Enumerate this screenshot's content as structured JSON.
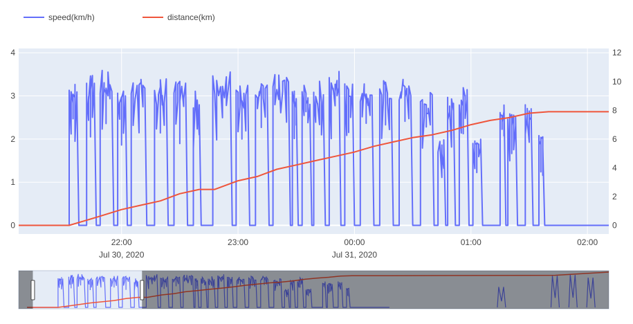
{
  "chart_data": {
    "type": "line",
    "title": "",
    "xlabel": "",
    "ylabel": "",
    "y2label": "",
    "legend": {
      "placement": "top-left",
      "orientation": "horizontal"
    },
    "grid": true,
    "x_ticks": [
      {
        "label": "22:00",
        "sublabel": "Jul 30, 2020",
        "t": "2020-07-30T22:00"
      },
      {
        "label": "23:00",
        "sublabel": "",
        "t": "2020-07-30T23:00"
      },
      {
        "label": "00:00",
        "sublabel": "Jul 31, 2020",
        "t": "2020-07-31T00:00"
      },
      {
        "label": "01:00",
        "sublabel": "",
        "t": "2020-07-31T01:00"
      },
      {
        "label": "02:00",
        "sublabel": "",
        "t": "2020-07-31T02:00"
      }
    ],
    "xlim": [
      "2020-07-30T21:07",
      "2020-07-31T02:11"
    ],
    "y_left": {
      "ticks": [
        "0",
        "1",
        "2",
        "3",
        "4"
      ],
      "range": [
        -0.2,
        4.1
      ]
    },
    "y_right": {
      "ticks": [
        "0",
        "2",
        "4",
        "6",
        "8",
        "10",
        "12"
      ],
      "range": [
        -0.6,
        12.3
      ]
    },
    "series": [
      {
        "name": "speed(km/h)",
        "axis": "left",
        "color": "#636efa",
        "note": "rapidly oscillating between ~0 and ~3.4; active bursts listed as [start, end, peak]",
        "bursts": [
          [
            "2020-07-30T21:33",
            "2020-07-30T21:38",
            3.4
          ],
          [
            "2020-07-30T21:42",
            "2020-07-30T21:47",
            3.5
          ],
          [
            "2020-07-30T21:49",
            "2020-07-30T21:56",
            3.6
          ],
          [
            "2020-07-30T21:58",
            "2020-07-30T22:03",
            3.3
          ],
          [
            "2020-07-30T22:05",
            "2020-07-30T22:13",
            3.4
          ],
          [
            "2020-07-30T22:17",
            "2020-07-30T22:24",
            3.4
          ],
          [
            "2020-07-30T22:27",
            "2020-07-30T22:34",
            3.4
          ],
          [
            "2020-07-30T22:37",
            "2020-07-30T22:41",
            3.2
          ],
          [
            "2020-07-30T22:47",
            "2020-07-30T22:57",
            3.6
          ],
          [
            "2020-07-30T22:59",
            "2020-07-30T23:06",
            3.3
          ],
          [
            "2020-07-30T23:09",
            "2020-07-30T23:16",
            3.3
          ],
          [
            "2020-07-30T23:18",
            "2020-07-30T23:27",
            3.5
          ],
          [
            "2020-07-30T23:28",
            "2020-07-30T23:31",
            3.3
          ],
          [
            "2020-07-30T23:33",
            "2020-07-30T23:38",
            3.3
          ],
          [
            "2020-07-30T23:39",
            "2020-07-30T23:45",
            3.4
          ],
          [
            "2020-07-30T23:47",
            "2020-07-30T23:53",
            3.6
          ],
          [
            "2020-07-30T23:55",
            "2020-07-31T00:00",
            3.4
          ],
          [
            "2020-07-31T00:03",
            "2020-07-31T00:10",
            3.3
          ],
          [
            "2020-07-31T00:13",
            "2020-07-31T00:20",
            3.4
          ],
          [
            "2020-07-31T00:23",
            "2020-07-31T00:30",
            3.5
          ],
          [
            "2020-07-31T00:34",
            "2020-07-31T00:41",
            3.1
          ],
          [
            "2020-07-31T00:43",
            "2020-07-31T00:47",
            2.0
          ],
          [
            "2020-07-31T00:48",
            "2020-07-31T00:52",
            3.2
          ],
          [
            "2020-07-31T00:54",
            "2020-07-31T00:59",
            3.3
          ],
          [
            "2020-07-31T01:01",
            "2020-07-31T01:06",
            2.1
          ],
          [
            "2020-07-31T01:15",
            "2020-07-31T01:18",
            2.9
          ],
          [
            "2020-07-31T01:19",
            "2020-07-31T01:24",
            2.6
          ],
          [
            "2020-07-31T01:28",
            "2020-07-31T01:32",
            2.9
          ],
          [
            "2020-07-31T01:35",
            "2020-07-31T01:38",
            2.1
          ]
        ]
      },
      {
        "name": "distance(km)",
        "axis": "right",
        "color": "#ef553b",
        "points": [
          [
            "2020-07-30T21:07",
            0
          ],
          [
            "2020-07-30T21:33",
            0
          ],
          [
            "2020-07-30T21:48",
            0.6
          ],
          [
            "2020-07-30T22:00",
            1.1
          ],
          [
            "2020-07-30T22:10",
            1.4
          ],
          [
            "2020-07-30T22:20",
            1.7
          ],
          [
            "2020-07-30T22:30",
            2.2
          ],
          [
            "2020-07-30T22:40",
            2.5
          ],
          [
            "2020-07-30T22:48",
            2.5
          ],
          [
            "2020-07-30T23:00",
            3.1
          ],
          [
            "2020-07-30T23:10",
            3.4
          ],
          [
            "2020-07-30T23:20",
            3.9
          ],
          [
            "2020-07-30T23:30",
            4.2
          ],
          [
            "2020-07-30T23:40",
            4.5
          ],
          [
            "2020-07-30T23:50",
            4.8
          ],
          [
            "2020-07-31T00:00",
            5.1
          ],
          [
            "2020-07-31T00:10",
            5.5
          ],
          [
            "2020-07-31T00:20",
            5.8
          ],
          [
            "2020-07-31T00:30",
            6.1
          ],
          [
            "2020-07-31T00:40",
            6.3
          ],
          [
            "2020-07-31T00:50",
            6.6
          ],
          [
            "2020-07-31T01:00",
            7.0
          ],
          [
            "2020-07-31T01:10",
            7.3
          ],
          [
            "2020-07-31T01:20",
            7.5
          ],
          [
            "2020-07-31T01:30",
            7.8
          ],
          [
            "2020-07-31T01:40",
            7.9
          ],
          [
            "2020-07-31T02:11",
            7.9
          ]
        ]
      }
    ],
    "rangeslider": {
      "selected_fraction": [
        0.024,
        0.209
      ]
    }
  }
}
